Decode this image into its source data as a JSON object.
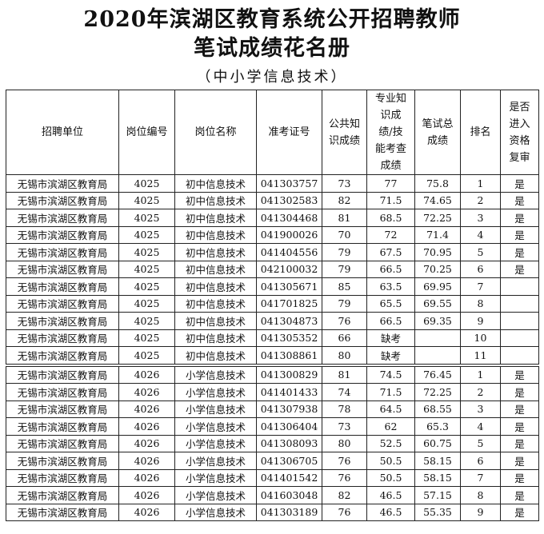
{
  "title_line1": "2020年滨湖区教育系统公开招聘教师",
  "title_line2": "笔试成绩花名册",
  "subtitle": "（中小学信息技术）",
  "headers": [
    "招聘单位",
    "岗位编号",
    "岗位名称",
    "准考证号",
    "公共知识成绩",
    "专业知识成绩/技能考查成绩",
    "笔试总成绩",
    "排名",
    "是否进入资格复审"
  ],
  "rows": [
    [
      "无锡市滨湖区教育局",
      "4025",
      "初中信息技术",
      "041303757",
      "73",
      "77",
      "75.8",
      "1",
      "是"
    ],
    [
      "无锡市滨湖区教育局",
      "4025",
      "初中信息技术",
      "041302583",
      "82",
      "71.5",
      "74.65",
      "2",
      "是"
    ],
    [
      "无锡市滨湖区教育局",
      "4025",
      "初中信息技术",
      "041304468",
      "81",
      "68.5",
      "72.25",
      "3",
      "是"
    ],
    [
      "无锡市滨湖区教育局",
      "4025",
      "初中信息技术",
      "041900026",
      "70",
      "72",
      "71.4",
      "4",
      "是"
    ],
    [
      "无锡市滨湖区教育局",
      "4025",
      "初中信息技术",
      "041404556",
      "79",
      "67.5",
      "70.95",
      "5",
      "是"
    ],
    [
      "无锡市滨湖区教育局",
      "4025",
      "初中信息技术",
      "042100032",
      "79",
      "66.5",
      "70.25",
      "6",
      "是"
    ],
    [
      "无锡市滨湖区教育局",
      "4025",
      "初中信息技术",
      "041305671",
      "85",
      "63.5",
      "69.95",
      "7",
      ""
    ],
    [
      "无锡市滨湖区教育局",
      "4025",
      "初中信息技术",
      "041701825",
      "79",
      "65.5",
      "69.55",
      "8",
      ""
    ],
    [
      "无锡市滨湖区教育局",
      "4025",
      "初中信息技术",
      "041304873",
      "76",
      "66.5",
      "69.35",
      "9",
      ""
    ],
    [
      "无锡市滨湖区教育局",
      "4025",
      "初中信息技术",
      "041305352",
      "66",
      "缺考",
      "",
      "10",
      ""
    ],
    [
      "无锡市滨湖区教育局",
      "4025",
      "初中信息技术",
      "041308861",
      "80",
      "缺考",
      "",
      "11",
      ""
    ],
    [
      "无锡市滨湖区教育局",
      "4026",
      "小学信息技术",
      "041300829",
      "81",
      "74.5",
      "76.45",
      "1",
      "是"
    ],
    [
      "无锡市滨湖区教育局",
      "4026",
      "小学信息技术",
      "041401433",
      "74",
      "71.5",
      "72.25",
      "2",
      "是"
    ],
    [
      "无锡市滨湖区教育局",
      "4026",
      "小学信息技术",
      "041307938",
      "78",
      "64.5",
      "68.55",
      "3",
      "是"
    ],
    [
      "无锡市滨湖区教育局",
      "4026",
      "小学信息技术",
      "041306404",
      "73",
      "62",
      "65.3",
      "4",
      "是"
    ],
    [
      "无锡市滨湖区教育局",
      "4026",
      "小学信息技术",
      "041308093",
      "80",
      "52.5",
      "60.75",
      "5",
      "是"
    ],
    [
      "无锡市滨湖区教育局",
      "4026",
      "小学信息技术",
      "041306705",
      "76",
      "50.5",
      "58.15",
      "6",
      "是"
    ],
    [
      "无锡市滨湖区教育局",
      "4026",
      "小学信息技术",
      "041401542",
      "76",
      "50.5",
      "58.15",
      "7",
      "是"
    ],
    [
      "无锡市滨湖区教育局",
      "4026",
      "小学信息技术",
      "041603048",
      "82",
      "46.5",
      "57.15",
      "8",
      "是"
    ],
    [
      "无锡市滨湖区教育局",
      "4026",
      "小学信息技术",
      "041303189",
      "76",
      "46.5",
      "55.35",
      "9",
      "是"
    ]
  ]
}
